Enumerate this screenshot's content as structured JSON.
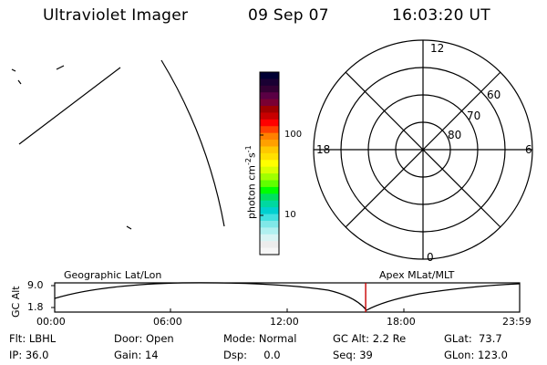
{
  "header": {
    "title": "Ultraviolet Imager",
    "date": "09 Sep 07",
    "time": "16:03:20 UT"
  },
  "colorbar": {
    "label_main": "photon cm",
    "label_sup1": "-2",
    "label_mid": "s",
    "label_sup2": "-1",
    "tick_100": "100",
    "tick_10": "10",
    "colors": [
      "#000033",
      "#1a0033",
      "#330033",
      "#5a0044",
      "#7a0033",
      "#a00000",
      "#c80000",
      "#ff0000",
      "#ff4000",
      "#ff8000",
      "#ffa000",
      "#ffc800",
      "#ffe000",
      "#ffff00",
      "#d8ff00",
      "#a0ff00",
      "#60ff00",
      "#00ff00",
      "#00e060",
      "#00d8a0",
      "#00d0d0",
      "#40e0e0",
      "#80e8e8",
      "#b0f0f0",
      "#d8f4f4",
      "#ececec",
      "#f6f6f6"
    ]
  },
  "polar": {
    "labels": {
      "top": "12",
      "left": "18",
      "right": "6",
      "bottom": "0",
      "lat60": "60",
      "lat70": "70",
      "lat80": "80"
    }
  },
  "timeline": {
    "left_label": "Geographic Lat/Lon",
    "right_label": "Apex MLat/MLT",
    "y_axis_label": "GC Alt",
    "y_ticks": [
      "9.0",
      "1.8"
    ],
    "x_ticks": [
      "00:00",
      "06:00",
      "12:00",
      "18:00",
      "23:59"
    ],
    "current_time_fraction": 0.6689
  },
  "status": {
    "flt": "Flt: LBHL",
    "ip": "IP: 36.0",
    "door": "Door: Open",
    "gain": "Gain: 14",
    "mode": "Mode: Normal",
    "dsp": "Dsp:     0.0",
    "gc_alt": "GC Alt: 2.2 Re",
    "seq": "Seq: 39",
    "glat": "GLat:  73.7",
    "glon": "GLon: 123.0"
  }
}
